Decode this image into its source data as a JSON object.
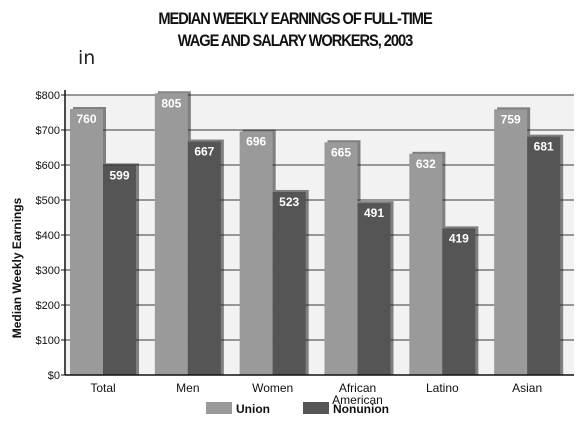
{
  "header": {
    "title_line1": "MEDIAN WEEKLY EARNINGS OF FULL-TIME",
    "title_line2": "WAGE AND SALARY WORKERS, 2003",
    "side_note": "in"
  },
  "colors": {
    "union": "#9a9a9a",
    "nonunion": "#555555",
    "plot_bg": "#f2f2f2"
  },
  "chart_data": {
    "type": "bar",
    "title": "MEDIAN WEEKLY EARNINGS OF FULL-TIME WAGE AND SALARY WORKERS, 2003",
    "categories": [
      "Total",
      "Men",
      "Women",
      "African American",
      "Latino",
      "Asian"
    ],
    "category_lines": [
      [
        "Total"
      ],
      [
        "Men"
      ],
      [
        "Women"
      ],
      [
        "African",
        "American"
      ],
      [
        "Latino"
      ],
      [
        "Asian"
      ]
    ],
    "series": [
      {
        "name": "Union",
        "values": [
          760,
          805,
          696,
          665,
          632,
          759
        ]
      },
      {
        "name": "Nonunion",
        "values": [
          599,
          667,
          523,
          491,
          419,
          681
        ]
      }
    ],
    "xlabel": "",
    "ylabel": "Median Weekly Earnings",
    "ylim": [
      0,
      800
    ],
    "yticks": [
      0,
      100,
      200,
      300,
      400,
      500,
      600,
      700,
      800
    ],
    "ytick_labels": [
      "$0",
      "$100",
      "$200",
      "$300",
      "$400",
      "$500",
      "$600",
      "$700",
      "$800"
    ],
    "grid": true,
    "legend_position": "bottom"
  }
}
